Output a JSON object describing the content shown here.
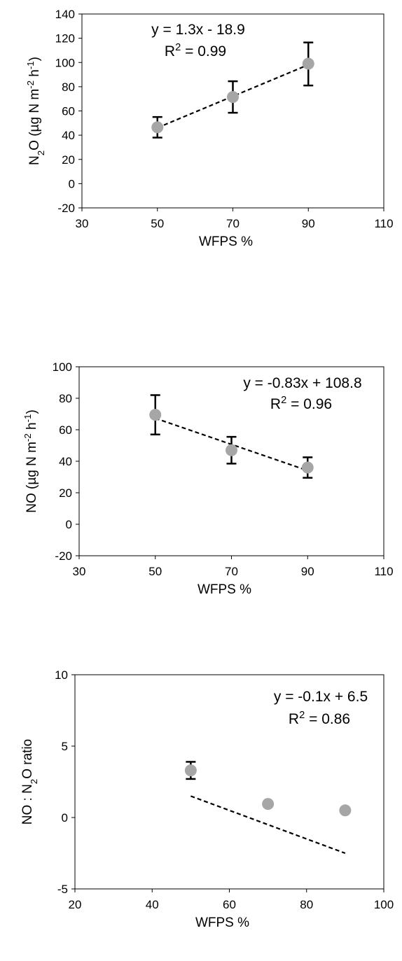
{
  "chart_data": [
    {
      "type": "scatter",
      "xlabel": "WFPS %",
      "ylabel": "N₂O (µg N m⁻² h⁻¹)",
      "xlim": [
        30,
        110
      ],
      "ylim": [
        -20,
        140
      ],
      "xticks": [
        30,
        50,
        70,
        90,
        110
      ],
      "yticks": [
        -20,
        0,
        20,
        40,
        60,
        80,
        100,
        120,
        140
      ],
      "points": [
        {
          "x": 50,
          "y": 46.5,
          "err_low": 38,
          "err_high": 55
        },
        {
          "x": 70,
          "y": 71.5,
          "err_low": 58.5,
          "err_high": 84.5
        },
        {
          "x": 90,
          "y": 99,
          "err_low": 81,
          "err_high": 116.5
        }
      ],
      "trendline": {
        "slope": 1.3,
        "intercept": -18.9,
        "x_range": [
          50,
          90
        ],
        "style": "dashed"
      },
      "equation": "y = 1.3x - 18.9",
      "r2": "R² = 0.99",
      "grid": false,
      "marker_color": "#a6a6a6"
    },
    {
      "type": "scatter",
      "xlabel": "WFPS %",
      "ylabel": "NO (µg N m⁻² h⁻¹)",
      "xlim": [
        30,
        110
      ],
      "ylim": [
        -20,
        100
      ],
      "xticks": [
        30,
        50,
        70,
        90,
        110
      ],
      "yticks": [
        -20,
        0,
        20,
        40,
        60,
        80,
        100
      ],
      "points": [
        {
          "x": 50,
          "y": 69.5,
          "err_low": 57,
          "err_high": 82
        },
        {
          "x": 70,
          "y": 47,
          "err_low": 38.5,
          "err_high": 55.5
        },
        {
          "x": 90,
          "y": 36,
          "err_low": 29.5,
          "err_high": 42.5
        }
      ],
      "trendline": {
        "slope": -0.83,
        "intercept": 108.8,
        "x_range": [
          50,
          90
        ],
        "style": "dashed"
      },
      "equation": "y = -0.83x + 108.8",
      "r2": "R² = 0.96",
      "grid": false,
      "marker_color": "#a6a6a6"
    },
    {
      "type": "scatter",
      "xlabel": "WFPS %",
      "ylabel": "NO : N₂O ratio",
      "xlim": [
        20,
        100
      ],
      "ylim": [
        -5,
        10
      ],
      "xticks": [
        20,
        40,
        60,
        80,
        100
      ],
      "yticks": [
        -5,
        0,
        5,
        10
      ],
      "points": [
        {
          "x": 50,
          "y": 3.3,
          "err_low": 2.7,
          "err_high": 3.9
        },
        {
          "x": 70,
          "y": 0.95,
          "err_low": null,
          "err_high": null
        },
        {
          "x": 90,
          "y": 0.5,
          "err_low": null,
          "err_high": null
        }
      ],
      "trendline": {
        "slope": -0.1,
        "intercept": 6.5,
        "x_range": [
          50,
          90
        ],
        "style": "dashed"
      },
      "equation": "y = -0.1x + 6.5",
      "r2": "R² = 0.86",
      "grid": false,
      "marker_color": "#a6a6a6"
    }
  ]
}
